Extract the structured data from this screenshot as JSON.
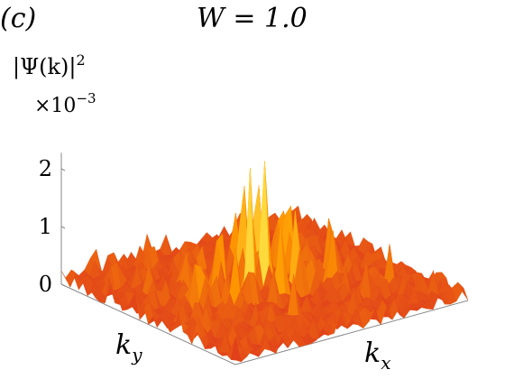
{
  "panel_label": "(c)",
  "title": "W = 1.0",
  "zlabel": "|Ψ(k)|",
  "zlabel_sup": "2",
  "scale_prefix": "×10",
  "scale_exp": "−3",
  "xlabel_base": "k",
  "xlabel_sub": "x",
  "ylabel_base": "k",
  "ylabel_sub": "y",
  "colors": {
    "low": "#e0411a",
    "mid": "#ff9a00",
    "high": "#ffe84a",
    "axis": "#888888"
  },
  "chart_data": {
    "type": "surface",
    "title": "W = 1.0",
    "zlabel": "|Ψ(k)|^2",
    "zscale": "x10^-3",
    "xlabel": "k_x",
    "ylabel": "k_y",
    "zlim": [
      0,
      2.4
    ],
    "zticks": [
      0,
      1,
      2
    ],
    "grid_size": [
      41,
      41
    ],
    "peaks": [
      {
        "u": 0.5,
        "v": 0.5,
        "z": 2.35
      },
      {
        "u": 0.45,
        "v": 0.44,
        "z": 2.05
      },
      {
        "u": 0.54,
        "v": 0.4,
        "z": 1.95
      },
      {
        "u": 0.4,
        "v": 0.55,
        "z": 1.8
      },
      {
        "u": 0.58,
        "v": 0.58,
        "z": 1.7
      },
      {
        "u": 0.62,
        "v": 0.46,
        "z": 1.55
      },
      {
        "u": 0.36,
        "v": 0.42,
        "z": 1.4
      },
      {
        "u": 0.48,
        "v": 0.62,
        "z": 1.45
      },
      {
        "u": 0.66,
        "v": 0.38,
        "z": 1.2
      },
      {
        "u": 0.3,
        "v": 0.6,
        "z": 1.05
      },
      {
        "u": 0.52,
        "v": 0.3,
        "z": 1.1
      },
      {
        "u": 0.7,
        "v": 0.62,
        "z": 0.95
      },
      {
        "u": 0.28,
        "v": 0.34,
        "z": 0.85
      },
      {
        "u": 0.2,
        "v": 0.5,
        "z": 0.8
      },
      {
        "u": 0.78,
        "v": 0.5,
        "z": 0.7
      },
      {
        "u": 0.15,
        "v": 0.3,
        "z": 0.55
      },
      {
        "u": 0.85,
        "v": 0.75,
        "z": 0.5
      },
      {
        "u": 0.4,
        "v": 0.8,
        "z": 0.6
      },
      {
        "u": 0.6,
        "v": 0.2,
        "z": 0.55
      },
      {
        "u": 0.1,
        "v": 0.7,
        "z": 0.45
      }
    ],
    "background_level": 0.15
  }
}
